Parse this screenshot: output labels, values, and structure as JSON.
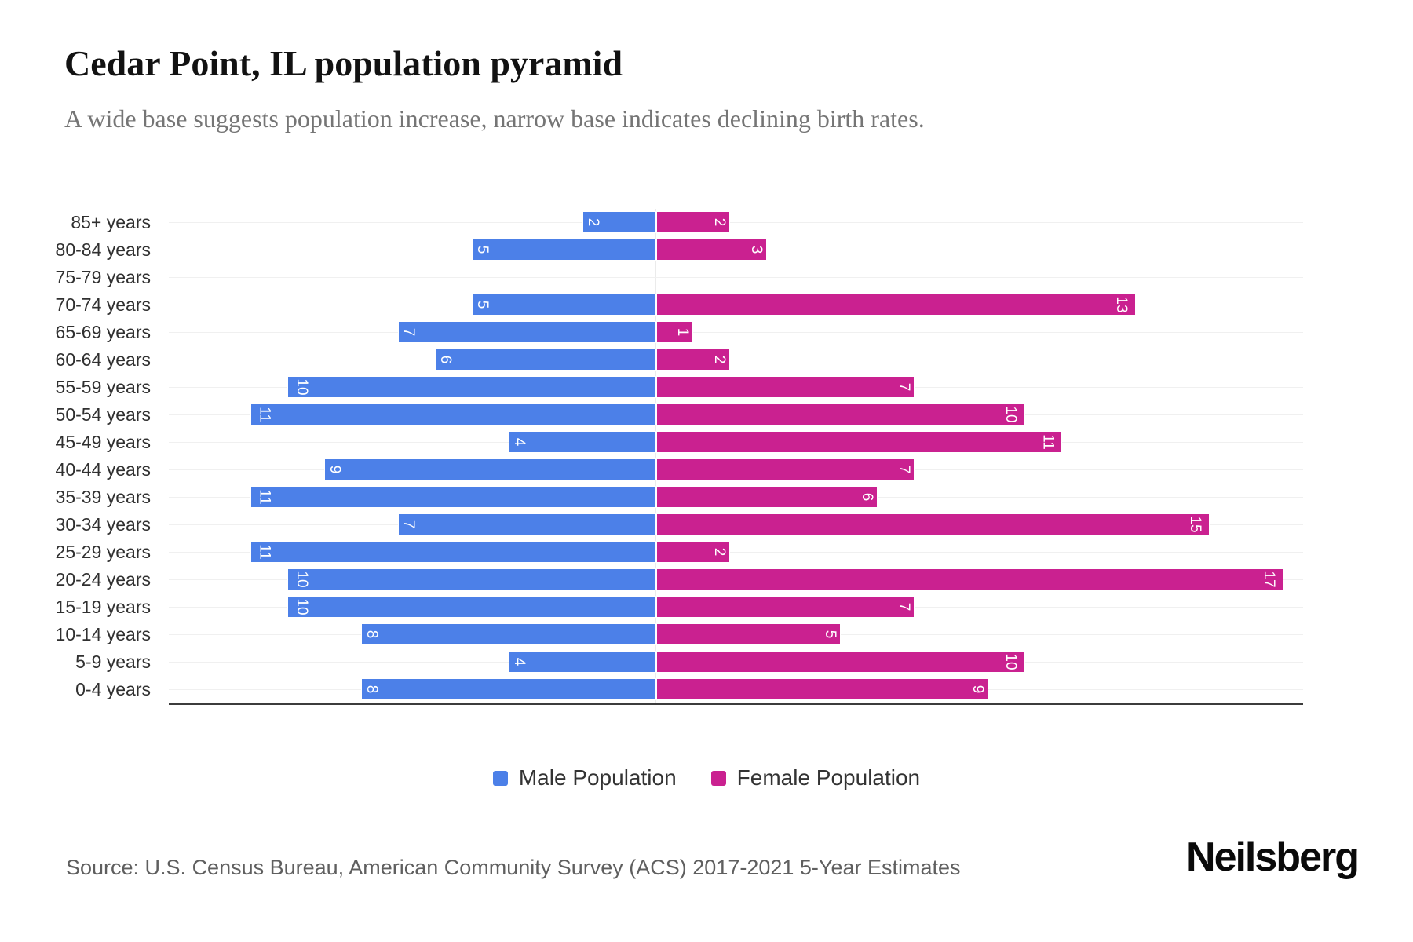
{
  "header": {
    "title": "Cedar Point, IL population pyramid",
    "subtitle": "A wide base suggests population increase, narrow base indicates declining birth rates."
  },
  "chart_data": {
    "type": "bar",
    "variant": "population-pyramid",
    "orientation": "horizontal",
    "categories": [
      "85+ years",
      "80-84 years",
      "75-79 years",
      "70-74 years",
      "65-69 years",
      "60-64 years",
      "55-59 years",
      "50-54 years",
      "45-49 years",
      "40-44 years",
      "35-39 years",
      "30-34 years",
      "25-29 years",
      "20-24 years",
      "15-19 years",
      "10-14 years",
      "5-9 years",
      "0-4 years"
    ],
    "series": [
      {
        "name": "Male Population",
        "color": "#4C80E8",
        "side": "left",
        "values": [
          2,
          5,
          0,
          5,
          7,
          6,
          10,
          11,
          4,
          9,
          11,
          7,
          11,
          10,
          10,
          8,
          4,
          8
        ]
      },
      {
        "name": "Female Population",
        "color": "#CA2190",
        "side": "right",
        "values": [
          2,
          3,
          0,
          13,
          1,
          2,
          7,
          10,
          11,
          7,
          6,
          15,
          2,
          17,
          7,
          5,
          10,
          9
        ]
      }
    ],
    "value_labels": "inside-end, rotated 90deg, white",
    "xlim_left": [
      0,
      13.2
    ],
    "xlim_right": [
      0,
      17.5
    ],
    "grid": true,
    "legend_position": "bottom"
  },
  "legend": {
    "items": [
      {
        "label": "Male Population",
        "color": "#4C80E8"
      },
      {
        "label": "Female Population",
        "color": "#CA2190"
      }
    ]
  },
  "footer": {
    "source": "Source: U.S. Census Bureau, American Community Survey (ACS) 2017-2021 5-Year Estimates",
    "brand": "Neilsberg"
  }
}
